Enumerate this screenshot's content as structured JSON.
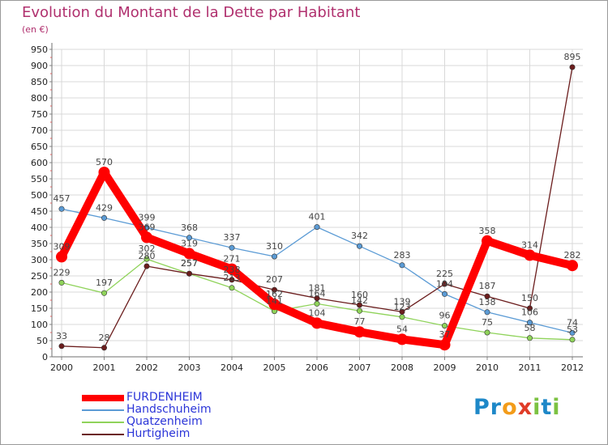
{
  "title": "Evolution du Montant de la Dette par Habitant",
  "subtitle": "(en €)",
  "logo": {
    "text": "Proxiti",
    "letters": [
      {
        "char": "P",
        "color": "#1e88c8"
      },
      {
        "char": "r",
        "color": "#1e88c8"
      },
      {
        "char": "o",
        "color": "#f39c1a"
      },
      {
        "char": "x",
        "color": "#e03c28"
      },
      {
        "char": "i",
        "color": "#7cc242"
      },
      {
        "char": "t",
        "color": "#1e88c8"
      },
      {
        "char": "i",
        "color": "#7cc242"
      }
    ]
  },
  "chart_data": {
    "type": "line",
    "title": "Evolution du Montant de la Dette par Habitant",
    "subtitle": "(en €)",
    "x": [
      "2000",
      "2001",
      "2002",
      "2003",
      "2004",
      "2005",
      "2006",
      "2007",
      "2008",
      "2009",
      "2010",
      "2011",
      "2012"
    ],
    "ylim": [
      0,
      950
    ],
    "yticks": [
      0,
      50,
      100,
      150,
      200,
      250,
      300,
      350,
      400,
      450,
      500,
      550,
      600,
      650,
      700,
      750,
      800,
      850,
      900,
      950
    ],
    "grid": true,
    "legend_position": "bottom-left",
    "series": [
      {
        "name": "FURDENHEIM",
        "color": "#ff0000",
        "emphasis": true,
        "values": [
          309,
          570,
          369,
          319,
          271,
          162,
          104,
          77,
          54,
          37,
          358,
          314,
          282
        ]
      },
      {
        "name": "Handschuheim",
        "color": "#5b9bd5",
        "values": [
          457,
          429,
          399,
          368,
          337,
          310,
          401,
          342,
          283,
          194,
          138,
          106,
          74
        ]
      },
      {
        "name": "Quatzenheim",
        "color": "#8fd35a",
        "values": [
          229,
          197,
          302,
          257,
          213,
          141,
          164,
          142,
          123,
          96,
          75,
          58,
          53
        ]
      },
      {
        "name": "Hurtigheim",
        "color": "#6b1d1d",
        "values": [
          33,
          28,
          280,
          257,
          238,
          207,
          181,
          160,
          139,
          225,
          187,
          150,
          895
        ]
      }
    ]
  }
}
